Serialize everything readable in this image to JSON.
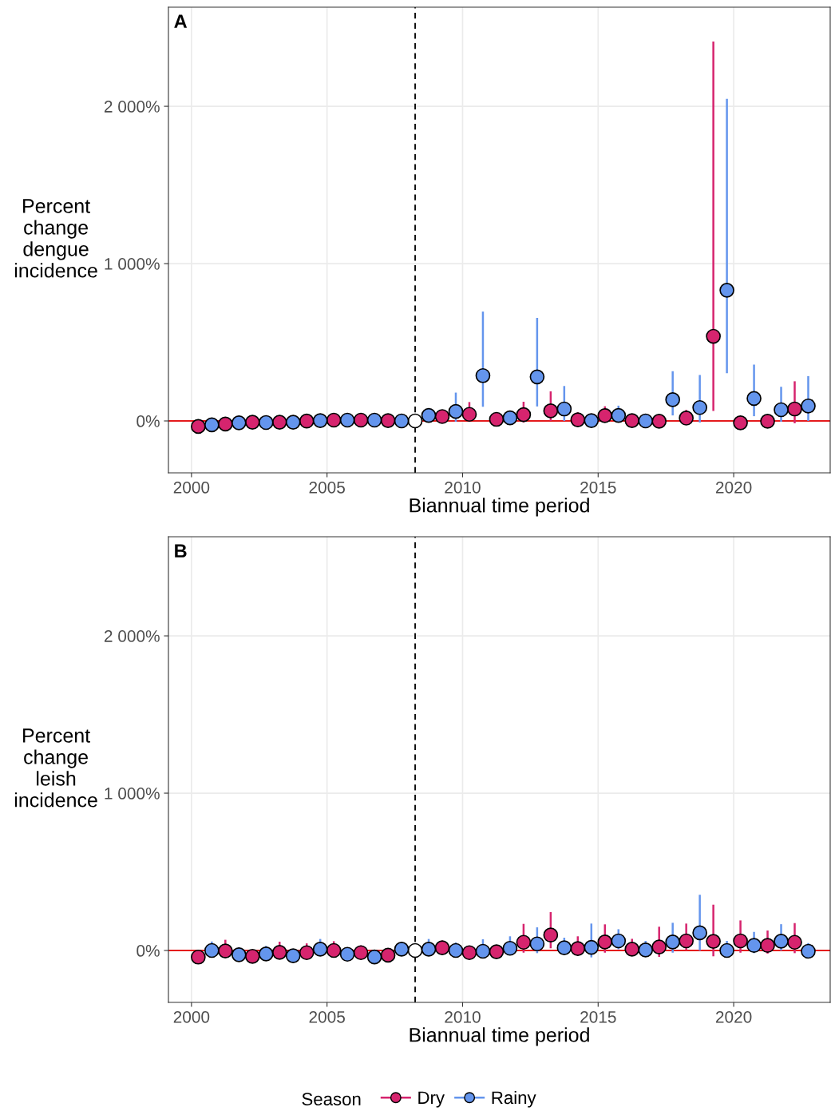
{
  "chart_data": [
    {
      "type": "scatter",
      "xlabel": "Biannual time period",
      "ylabel": "Percent\nchange\ndengue\nincidence",
      "annotations": [
        "A"
      ],
      "xlim": [
        1999.15,
        2023.56
      ],
      "xticks": [
        2000,
        2005,
        2010,
        2015,
        2020
      ],
      "ylim": [
        -330,
        2630
      ],
      "yticks": [
        {
          "value": 0,
          "label": "0%"
        },
        {
          "value": 1000,
          "label": "1 000%"
        },
        {
          "value": 2000,
          "label": "2 000%"
        }
      ],
      "grid": true,
      "marker": "circle",
      "ref_lines": [
        {
          "axis": "y",
          "value": 0,
          "color": "#e41a1c",
          "line_style": "solid"
        },
        {
          "axis": "x",
          "value": 2008.25,
          "color": "#000000",
          "line_style": "dashed"
        }
      ],
      "series": [
        {
          "color": "#d6246e",
          "colors": [
            "#d6246e",
            "#d6246e",
            "#d6246e",
            "#d6246e",
            "#d6246e",
            "#d6246e",
            "#d6246e",
            "#d6246e",
            "#ffffff",
            "#d6246e",
            "#d6246e",
            "#d6246e",
            "#d6246e",
            "#d6246e",
            "#d6246e",
            "#d6246e",
            "#d6246e",
            "#d6246e",
            "#d6246e",
            "#d6246e",
            "#d6246e",
            "#d6246e",
            "#d6246e"
          ],
          "x": [
            2000.25,
            2001.25,
            2002.25,
            2003.25,
            2004.25,
            2005.25,
            2006.25,
            2007.25,
            2008.25,
            2009.25,
            2010.25,
            2011.25,
            2012.25,
            2013.25,
            2014.25,
            2015.25,
            2016.25,
            2017.25,
            2018.25,
            2019.25,
            2020.25,
            2021.25,
            2022.25
          ],
          "values": [
            -35,
            -20,
            -8,
            -8,
            -1,
            5,
            5,
            2,
            0,
            28,
            42,
            10,
            40,
            64,
            7,
            34,
            2,
            -2,
            18,
            538,
            -12,
            -2,
            76
          ],
          "errors": [
            null,
            null,
            null,
            null,
            null,
            null,
            null,
            null,
            null,
            null,
            [
              0,
              120
            ],
            null,
            [
              -10,
              122
            ],
            [
              0,
              188
            ],
            [
              7,
              55
            ],
            [
              -5,
              93
            ],
            [
              2,
              45
            ],
            null,
            [
              18,
              70
            ],
            [
              63,
              2412
            ],
            null,
            null,
            [
              -15,
              252
            ]
          ]
        },
        {
          "color": "#6495ed",
          "x": [
            2000.75,
            2001.75,
            2002.75,
            2003.75,
            2004.75,
            2005.75,
            2006.75,
            2007.75,
            2008.75,
            2009.75,
            2010.75,
            2011.75,
            2012.75,
            2013.75,
            2014.75,
            2015.75,
            2016.75,
            2017.75,
            2018.75,
            2019.75,
            2020.75,
            2021.75,
            2022.75
          ],
          "values": [
            -25,
            -12,
            -10,
            -8,
            2,
            5,
            5,
            0,
            35,
            60,
            288,
            20,
            280,
            76,
            2,
            35,
            0,
            135,
            85,
            831,
            143,
            71,
            95
          ],
          "errors": [
            null,
            null,
            null,
            null,
            null,
            null,
            null,
            null,
            null,
            [
              -5,
              180
            ],
            [
              90,
              695
            ],
            [
              20,
              65
            ],
            [
              92,
              655
            ],
            [
              0,
              222
            ],
            null,
            [
              0,
              97
            ],
            [
              0,
              35
            ],
            [
              35,
              316
            ],
            [
              -10,
              292
            ],
            [
              304,
              2047
            ],
            [
              30,
              358
            ],
            [
              -5,
              217
            ],
            [
              0,
              285
            ]
          ]
        }
      ]
    },
    {
      "type": "scatter",
      "xlabel": "Biannual time period",
      "ylabel": "Percent\nchange\nleish\nincidence",
      "annotations": [
        "B"
      ],
      "xlim": [
        1999.15,
        2023.56
      ],
      "xticks": [
        2000,
        2005,
        2010,
        2015,
        2020
      ],
      "ylim": [
        -330,
        2630
      ],
      "yticks": [
        {
          "value": 0,
          "label": "0%"
        },
        {
          "value": 1000,
          "label": "1 000%"
        },
        {
          "value": 2000,
          "label": "2 000%"
        }
      ],
      "grid": true,
      "marker": "circle",
      "legend": "bottom",
      "legend_title": "Season",
      "ref_lines": [
        {
          "axis": "y",
          "value": 0,
          "color": "#e41a1c",
          "line_style": "solid"
        },
        {
          "axis": "x",
          "value": 2008.25,
          "color": "#000000",
          "line_style": "dashed"
        }
      ],
      "series": [
        {
          "name": "Dry",
          "color": "#d6246e",
          "colors": [
            "#d6246e",
            "#d6246e",
            "#d6246e",
            "#d6246e",
            "#d6246e",
            "#d6246e",
            "#d6246e",
            "#d6246e",
            "#ffffff",
            "#d6246e",
            "#d6246e",
            "#d6246e",
            "#d6246e",
            "#d6246e",
            "#d6246e",
            "#d6246e",
            "#d6246e",
            "#d6246e",
            "#d6246e",
            "#d6246e",
            "#d6246e",
            "#d6246e",
            "#d6246e"
          ],
          "x": [
            2000.25,
            2001.25,
            2002.25,
            2003.25,
            2004.25,
            2005.25,
            2006.25,
            2007.25,
            2008.25,
            2009.25,
            2010.25,
            2011.25,
            2012.25,
            2013.25,
            2014.25,
            2015.25,
            2016.25,
            2017.25,
            2018.25,
            2019.25,
            2020.25,
            2021.25,
            2022.25
          ],
          "values": [
            -42,
            -3,
            -37,
            -12,
            -14,
            0,
            -14,
            -30,
            0,
            17,
            -14,
            -8,
            52,
            98,
            12,
            54,
            8,
            22,
            61,
            58,
            61,
            32,
            52
          ],
          "errors": [
            null,
            [
              -3,
              68
            ],
            null,
            [
              -12,
              56
            ],
            [
              -14,
              45
            ],
            [
              0,
              59
            ],
            [
              -14,
              32
            ],
            null,
            null,
            [
              17,
              63
            ],
            null,
            null,
            [
              -14,
              169
            ],
            [
              14,
              244
            ],
            [
              -30,
              90
            ],
            [
              -14,
              166
            ],
            [
              8,
              74
            ],
            [
              -41,
              151
            ],
            [
              3,
              171
            ],
            [
              -37,
              291
            ],
            [
              -14,
              191
            ],
            [
              -20,
              127
            ],
            [
              -17,
              174
            ]
          ]
        },
        {
          "name": "Rainy",
          "color": "#6495ed",
          "x": [
            2000.75,
            2001.75,
            2002.75,
            2003.75,
            2004.75,
            2005.75,
            2006.75,
            2007.75,
            2008.75,
            2009.75,
            2010.75,
            2011.75,
            2012.75,
            2013.75,
            2014.75,
            2015.75,
            2016.75,
            2017.75,
            2018.75,
            2019.75,
            2020.75,
            2021.75,
            2022.75
          ],
          "values": [
            0,
            -27,
            -22,
            -34,
            8,
            -24,
            -41,
            8,
            8,
            0,
            -5,
            14,
            42,
            17,
            20,
            61,
            3,
            54,
            112,
            0,
            32,
            59,
            -5
          ],
          "errors": [
            [
              0,
              57
            ],
            [
              -27,
              20
            ],
            [
              -22,
              29
            ],
            null,
            [
              8,
              73
            ],
            null,
            null,
            [
              8,
              54
            ],
            [
              8,
              73
            ],
            [
              0,
              51
            ],
            [
              -5,
              71
            ],
            [
              -30,
              90
            ],
            [
              -17,
              147
            ],
            [
              17,
              81
            ],
            [
              -44,
              171
            ],
            [
              8,
              135
            ],
            [
              3,
              61
            ],
            [
              -14,
              176
            ],
            [
              0,
              354
            ],
            [
              0,
              61
            ],
            [
              -17,
              118
            ],
            [
              0,
              167
            ],
            [
              -5,
              47
            ]
          ]
        }
      ]
    }
  ]
}
